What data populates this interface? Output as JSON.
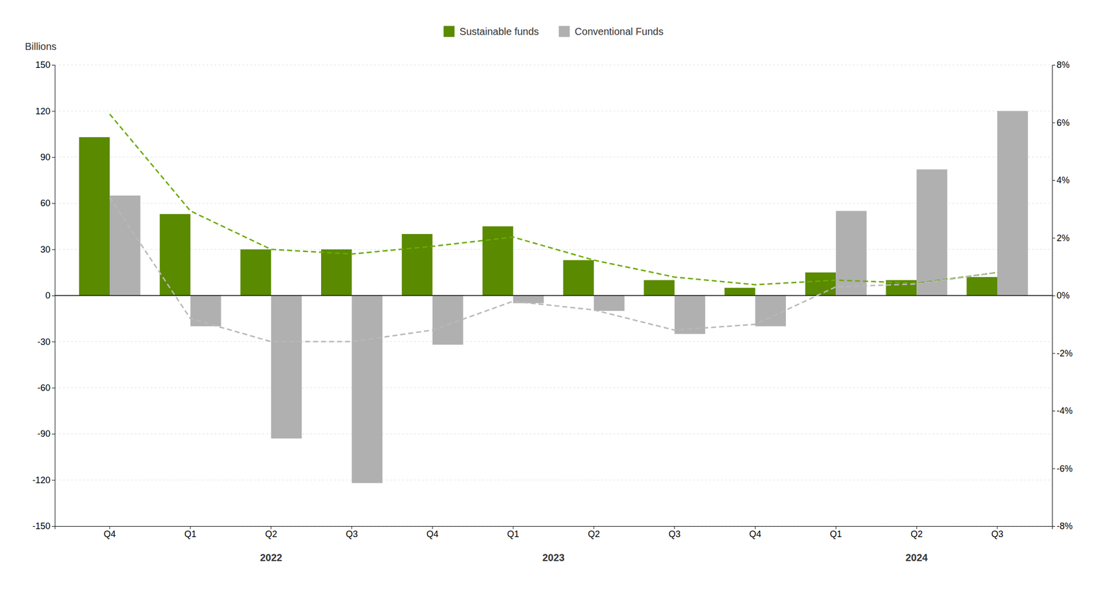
{
  "chart_data": {
    "type": "bar",
    "y_label": "Billions",
    "categories": [
      "Q4",
      "Q1",
      "Q2",
      "Q3",
      "Q4",
      "Q1",
      "Q2",
      "Q3",
      "Q4",
      "Q1",
      "Q2",
      "Q3"
    ],
    "series": [
      {
        "name": "Sustainable funds",
        "type": "bar",
        "color": "#5a8a00",
        "values": [
          103,
          53,
          30,
          30,
          40,
          45,
          23,
          10,
          5,
          15,
          10,
          12
        ]
      },
      {
        "name": "Conventional Funds",
        "type": "bar",
        "color": "#b0b0b0",
        "values": [
          65,
          -20,
          -93,
          -122,
          -32,
          -5,
          -10,
          -25,
          -20,
          55,
          82,
          120
        ]
      },
      {
        "type": "line",
        "color": "#6aaa00",
        "line_style": "dashed",
        "values": [
          118,
          55,
          30,
          27,
          32,
          38,
          23,
          12,
          7,
          10,
          8,
          15
        ]
      },
      {
        "type": "line",
        "color": "#b8b8b8",
        "line_style": "dashed",
        "axis": "y2",
        "values": [
          3.4,
          -0.8,
          -1.6,
          -1.6,
          -1.2,
          -0.2,
          -0.5,
          -1.2,
          -1.0,
          0.3,
          0.4,
          0.8
        ]
      }
    ],
    "annotations": [
      {
        "text": "2022",
        "x": 2.0
      },
      {
        "text": "2023",
        "x": 5.5
      },
      {
        "text": "2024",
        "x": 10.0
      }
    ],
    "ylim": [
      -150,
      150
    ],
    "yticks": [
      -150,
      -120,
      -90,
      -60,
      -30,
      0,
      30,
      60,
      90,
      120,
      150
    ],
    "y2lim": [
      -8,
      8
    ],
    "y2ticks": [
      {
        "value": -8,
        "label": "-8%"
      },
      {
        "value": -6,
        "label": "-6%"
      },
      {
        "value": -4,
        "label": "-4%"
      },
      {
        "value": -2,
        "label": "-2%"
      },
      {
        "value": 0,
        "label": "0%"
      },
      {
        "value": 2,
        "label": "2%"
      },
      {
        "value": 4,
        "label": "4%"
      },
      {
        "value": 6,
        "label": "6%"
      },
      {
        "value": 8,
        "label": "8%"
      }
    ],
    "grid": true,
    "legend": "top"
  }
}
